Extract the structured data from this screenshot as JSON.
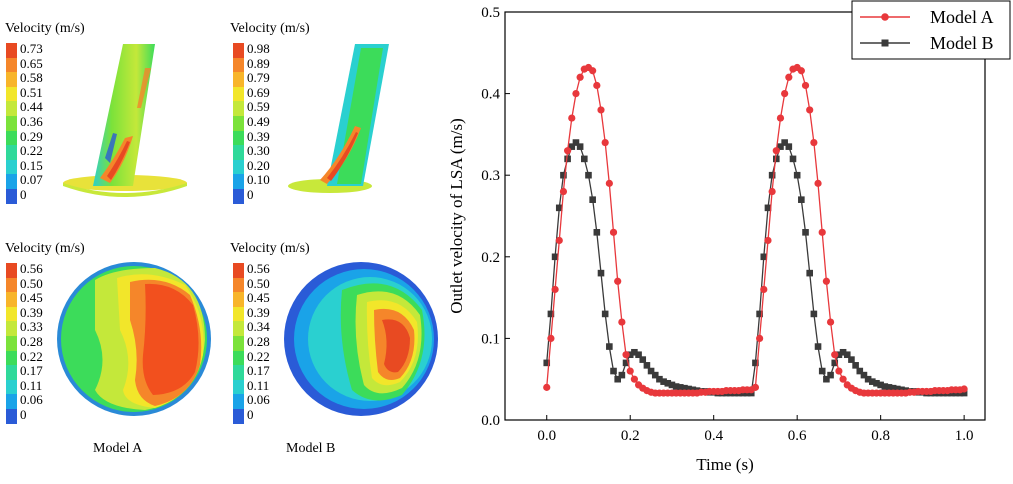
{
  "colorbar_colors": [
    "#2a5bd7",
    "#1aa3e8",
    "#2ad0d0",
    "#2fd99a",
    "#3cdc5a",
    "#7be23a",
    "#c4e83a",
    "#f2e62a",
    "#f8b52a",
    "#f5862a",
    "#e84a22"
  ],
  "contours": [
    {
      "title": "Velocity (m/s)",
      "labels": [
        "0.73",
        "0.65",
        "0.58",
        "0.51",
        "0.44",
        "0.36",
        "0.29",
        "0.22",
        "0.15",
        "0.07",
        "0"
      ]
    },
    {
      "title": "Velocity (m/s)",
      "labels": [
        "0.98",
        "0.89",
        "0.79",
        "0.69",
        "0.59",
        "0.49",
        "0.39",
        "0.30",
        "0.20",
        "0.10",
        "0"
      ]
    },
    {
      "title": "Velocity (m/s)",
      "labels": [
        "0.56",
        "0.50",
        "0.45",
        "0.39",
        "0.33",
        "0.28",
        "0.22",
        "0.17",
        "0.11",
        "0.06",
        "0"
      ]
    },
    {
      "title": "Velocity (m/s)",
      "labels": [
        "0.56",
        "0.50",
        "0.45",
        "0.39",
        "0.34",
        "0.28",
        "0.22",
        "0.17",
        "0.11",
        "0.06",
        "0"
      ]
    }
  ],
  "model_labels": [
    "Model A",
    "Model B"
  ],
  "chart_data": {
    "type": "line",
    "xlabel": "Time (s)",
    "ylabel": "Outlet velocity of LSA (m/s)",
    "xlim": [
      -0.1,
      1.05
    ],
    "ylim": [
      0,
      0.5
    ],
    "xticks": [
      "0.0",
      "0.2",
      "0.4",
      "0.6",
      "0.8",
      "1.0"
    ],
    "xtick_values": [
      0,
      0.2,
      0.4,
      0.6,
      0.8,
      1.0
    ],
    "yticks": [
      "0.0",
      "0.1",
      "0.2",
      "0.3",
      "0.4",
      "0.5"
    ],
    "ytick_values": [
      0,
      0.1,
      0.2,
      0.3,
      0.4,
      0.5
    ],
    "legend_position": "top-right",
    "series": [
      {
        "name": "Model A",
        "color": "#e8383c",
        "marker": "circle",
        "x": [
          0,
          0.01,
          0.02,
          0.03,
          0.04,
          0.05,
          0.06,
          0.07,
          0.08,
          0.09,
          0.1,
          0.11,
          0.12,
          0.13,
          0.14,
          0.15,
          0.16,
          0.17,
          0.18,
          0.19,
          0.2,
          0.21,
          0.22,
          0.23,
          0.24,
          0.25,
          0.26,
          0.27,
          0.28,
          0.29,
          0.3,
          0.31,
          0.32,
          0.33,
          0.34,
          0.35,
          0.36,
          0.37,
          0.38,
          0.39,
          0.4,
          0.41,
          0.42,
          0.43,
          0.44,
          0.45,
          0.46,
          0.47,
          0.48,
          0.49,
          0.5,
          0.51,
          0.52,
          0.53,
          0.54,
          0.55,
          0.56,
          0.57,
          0.58,
          0.59,
          0.6,
          0.61,
          0.62,
          0.63,
          0.64,
          0.65,
          0.66,
          0.67,
          0.68,
          0.69,
          0.7,
          0.71,
          0.72,
          0.73,
          0.74,
          0.75,
          0.76,
          0.77,
          0.78,
          0.79,
          0.8,
          0.81,
          0.82,
          0.83,
          0.84,
          0.85,
          0.86,
          0.87,
          0.88,
          0.89,
          0.9,
          0.91,
          0.92,
          0.93,
          0.94,
          0.95,
          0.96,
          0.97,
          0.98,
          0.99,
          1.0
        ],
        "y": [
          0.04,
          0.1,
          0.16,
          0.22,
          0.28,
          0.33,
          0.37,
          0.4,
          0.42,
          0.43,
          0.432,
          0.428,
          0.41,
          0.38,
          0.34,
          0.29,
          0.23,
          0.17,
          0.12,
          0.08,
          0.06,
          0.05,
          0.043,
          0.039,
          0.036,
          0.034,
          0.033,
          0.033,
          0.033,
          0.033,
          0.033,
          0.033,
          0.033,
          0.033,
          0.033,
          0.033,
          0.033,
          0.034,
          0.034,
          0.035,
          0.035,
          0.035,
          0.035,
          0.036,
          0.036,
          0.036,
          0.036,
          0.037,
          0.037,
          0.037,
          0.04,
          0.1,
          0.16,
          0.22,
          0.28,
          0.33,
          0.37,
          0.4,
          0.42,
          0.43,
          0.432,
          0.428,
          0.41,
          0.38,
          0.34,
          0.29,
          0.23,
          0.17,
          0.12,
          0.08,
          0.06,
          0.05,
          0.043,
          0.039,
          0.036,
          0.034,
          0.033,
          0.033,
          0.033,
          0.033,
          0.033,
          0.033,
          0.033,
          0.033,
          0.033,
          0.033,
          0.033,
          0.034,
          0.034,
          0.035,
          0.035,
          0.035,
          0.035,
          0.036,
          0.036,
          0.036,
          0.036,
          0.037,
          0.037,
          0.037,
          0.038
        ]
      },
      {
        "name": "Model B",
        "color": "#3a3a3a",
        "marker": "square",
        "x": [
          0,
          0.01,
          0.02,
          0.03,
          0.04,
          0.05,
          0.06,
          0.07,
          0.08,
          0.09,
          0.1,
          0.11,
          0.12,
          0.13,
          0.14,
          0.15,
          0.16,
          0.17,
          0.18,
          0.19,
          0.2,
          0.21,
          0.22,
          0.23,
          0.24,
          0.25,
          0.26,
          0.27,
          0.28,
          0.29,
          0.3,
          0.31,
          0.32,
          0.33,
          0.34,
          0.35,
          0.36,
          0.37,
          0.38,
          0.39,
          0.4,
          0.41,
          0.42,
          0.43,
          0.44,
          0.45,
          0.46,
          0.47,
          0.48,
          0.49,
          0.5,
          0.51,
          0.52,
          0.53,
          0.54,
          0.55,
          0.56,
          0.57,
          0.58,
          0.59,
          0.6,
          0.61,
          0.62,
          0.63,
          0.64,
          0.65,
          0.66,
          0.67,
          0.68,
          0.69,
          0.7,
          0.71,
          0.72,
          0.73,
          0.74,
          0.75,
          0.76,
          0.77,
          0.78,
          0.79,
          0.8,
          0.81,
          0.82,
          0.83,
          0.84,
          0.85,
          0.86,
          0.87,
          0.88,
          0.89,
          0.9,
          0.91,
          0.92,
          0.93,
          0.94,
          0.95,
          0.96,
          0.97,
          0.98,
          0.99,
          1.0
        ],
        "y": [
          0.07,
          0.13,
          0.2,
          0.26,
          0.3,
          0.32,
          0.335,
          0.34,
          0.335,
          0.32,
          0.3,
          0.27,
          0.23,
          0.18,
          0.13,
          0.09,
          0.06,
          0.05,
          0.055,
          0.07,
          0.08,
          0.083,
          0.08,
          0.074,
          0.067,
          0.06,
          0.055,
          0.05,
          0.047,
          0.045,
          0.043,
          0.041,
          0.04,
          0.039,
          0.038,
          0.037,
          0.036,
          0.035,
          0.035,
          0.034,
          0.034,
          0.033,
          0.033,
          0.033,
          0.033,
          0.033,
          0.033,
          0.033,
          0.033,
          0.033,
          0.07,
          0.13,
          0.2,
          0.26,
          0.3,
          0.32,
          0.335,
          0.34,
          0.335,
          0.32,
          0.3,
          0.27,
          0.23,
          0.18,
          0.13,
          0.09,
          0.06,
          0.05,
          0.055,
          0.07,
          0.08,
          0.083,
          0.08,
          0.074,
          0.067,
          0.06,
          0.055,
          0.05,
          0.047,
          0.045,
          0.043,
          0.041,
          0.04,
          0.039,
          0.038,
          0.037,
          0.036,
          0.035,
          0.035,
          0.034,
          0.034,
          0.033,
          0.033,
          0.033,
          0.033,
          0.033,
          0.033,
          0.033,
          0.033,
          0.033,
          0.033
        ]
      }
    ]
  }
}
